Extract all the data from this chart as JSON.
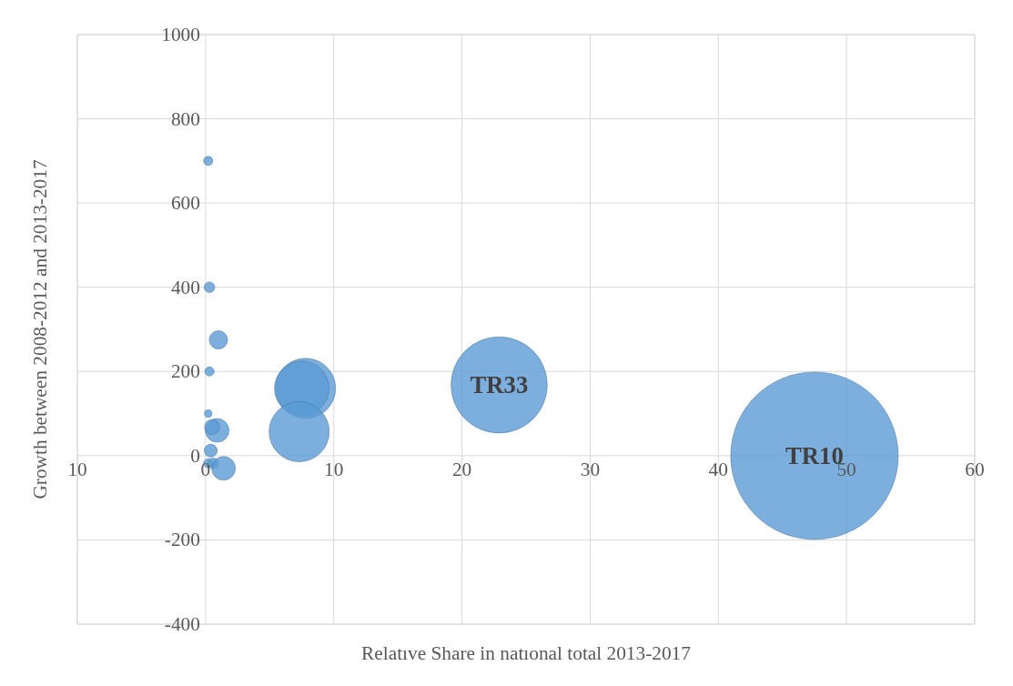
{
  "chart_data": {
    "type": "bubble",
    "xlabel": "Relatıve Share in natıonal total 2013-2017",
    "ylabel": "Growth between 2008-2012 and 2013-2017",
    "series": [
      {
        "color": "#5b9bd5",
        "x": [
          0.2,
          0.3,
          1.0,
          0.3,
          0.2,
          0.9,
          0.5,
          0.4,
          0.2,
          0.6,
          1.4,
          7.8,
          7.5,
          7.3,
          22.9,
          47.5
        ],
        "values": [
          700,
          400,
          275,
          200,
          100,
          60,
          68,
          12,
          -18,
          -18,
          -30,
          160,
          160,
          57,
          168,
          0
        ],
        "sizes": [
          0.003,
          0.004,
          0.012,
          0.003,
          0.002,
          0.02,
          0.008,
          0.006,
          0.003,
          0.004,
          0.02,
          0.129,
          0.106,
          0.129,
          0.33,
          1
        ]
      }
    ],
    "xlim": [
      -10,
      60
    ],
    "xticks": [
      {
        "value": -10,
        "label": "10"
      },
      0,
      10,
      20,
      30,
      40,
      50,
      60
    ],
    "ylim": [
      -400,
      1000
    ],
    "yticks": [
      -400,
      -200,
      0,
      200,
      400,
      600,
      800,
      1000
    ],
    "grid": true,
    "annotations": [
      {
        "text": "TR33",
        "x": 22.9,
        "y": 168
      },
      {
        "text": "TR10",
        "x": 47.5,
        "y": 0
      }
    ]
  }
}
